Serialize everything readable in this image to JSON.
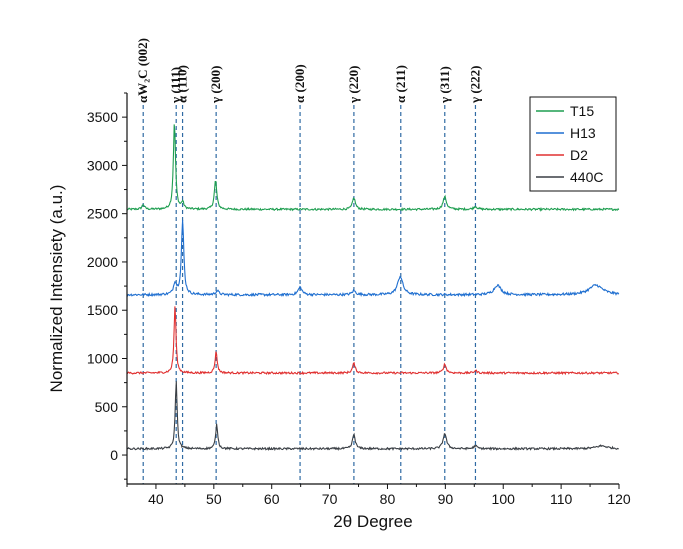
{
  "chart_data": {
    "type": "line",
    "xlabel": "2θ Degree",
    "ylabel": "Normalized Intensiety (a.u.)",
    "xlim": [
      35,
      120
    ],
    "ylim": [
      -300,
      3750
    ],
    "xticks": [
      40,
      50,
      60,
      70,
      80,
      90,
      100,
      110,
      120
    ],
    "yticks": [
      0,
      500,
      1000,
      1500,
      2000,
      2500,
      3000,
      3500
    ],
    "grid": false,
    "legend_position": "top-right",
    "peak_markers": [
      {
        "x": 37.8,
        "label": "αW₂C (002)"
      },
      {
        "x": 43.5,
        "label": "γ (111)"
      },
      {
        "x": 44.6,
        "label": "α (110)"
      },
      {
        "x": 50.4,
        "label": "γ (200)"
      },
      {
        "x": 64.9,
        "label": "α (200)"
      },
      {
        "x": 74.2,
        "label": "γ (220)"
      },
      {
        "x": 82.3,
        "label": "α (211)"
      },
      {
        "x": 89.9,
        "label": "γ (311)"
      },
      {
        "x": 95.2,
        "label": "γ (222)"
      }
    ],
    "series": [
      {
        "name": "T15",
        "color": "#1e9e50",
        "baseline": 2545,
        "noise": 10,
        "peaks": [
          {
            "x": 37.8,
            "height": 50,
            "width": 0.25
          },
          {
            "x": 43.2,
            "height": 900,
            "width": 0.22
          },
          {
            "x": 44.6,
            "height": 70,
            "width": 0.25
          },
          {
            "x": 50.3,
            "height": 300,
            "width": 0.25
          },
          {
            "x": 74.2,
            "height": 120,
            "width": 0.3
          },
          {
            "x": 89.9,
            "height": 130,
            "width": 0.35
          },
          {
            "x": 95.2,
            "height": 30,
            "width": 0.35
          }
        ]
      },
      {
        "name": "H13",
        "color": "#1f6fd0",
        "baseline": 1660,
        "noise": 12,
        "peaks": [
          {
            "x": 43.3,
            "height": 120,
            "width": 0.3
          },
          {
            "x": 44.6,
            "height": 760,
            "width": 0.25
          },
          {
            "x": 50.6,
            "height": 40,
            "width": 0.35
          },
          {
            "x": 64.9,
            "height": 80,
            "width": 0.4
          },
          {
            "x": 74.2,
            "height": 40,
            "width": 0.4
          },
          {
            "x": 82.2,
            "height": 190,
            "width": 0.55
          },
          {
            "x": 99,
            "height": 100,
            "width": 0.7
          },
          {
            "x": 116,
            "height": 100,
            "width": 1.4
          }
        ]
      },
      {
        "name": "D2",
        "color": "#e03030",
        "baseline": 850,
        "noise": 10,
        "peaks": [
          {
            "x": 43.3,
            "height": 700,
            "width": 0.2
          },
          {
            "x": 50.4,
            "height": 220,
            "width": 0.22
          },
          {
            "x": 74.2,
            "height": 100,
            "width": 0.28
          },
          {
            "x": 89.9,
            "height": 90,
            "width": 0.3
          },
          {
            "x": 95.2,
            "height": 25,
            "width": 0.3
          }
        ]
      },
      {
        "name": "440C",
        "color": "#3a3f45",
        "baseline": 65,
        "noise": 10,
        "peaks": [
          {
            "x": 43.5,
            "height": 700,
            "width": 0.2
          },
          {
            "x": 50.5,
            "height": 250,
            "width": 0.22
          },
          {
            "x": 74.2,
            "height": 150,
            "width": 0.28
          },
          {
            "x": 89.9,
            "height": 160,
            "width": 0.35
          },
          {
            "x": 95.2,
            "height": 30,
            "width": 0.35
          },
          {
            "x": 117,
            "height": 30,
            "width": 1.2
          }
        ]
      }
    ]
  }
}
